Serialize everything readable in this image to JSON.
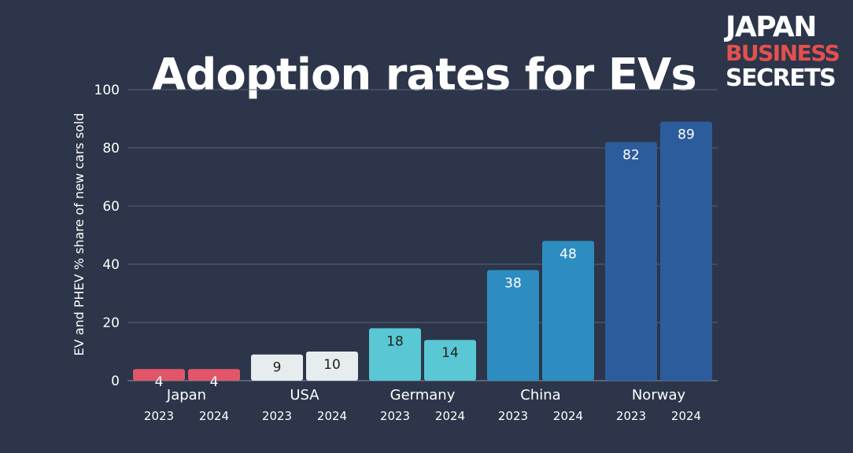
{
  "logo": {
    "line1": "JAPAN",
    "line2": "BUSINESS",
    "line3": "SECRETS"
  },
  "chart_data": {
    "type": "bar",
    "title": "Adoption rates for EVs",
    "ylabel": "EV and PHEV % share of new cars sold",
    "xlabel": "",
    "ylim": [
      0,
      100
    ],
    "yticks": [
      0,
      20,
      40,
      60,
      80,
      100
    ],
    "grid": true,
    "legend": "none",
    "groups": [
      {
        "category": "Japan",
        "color": "#e2566a",
        "label_color": "#ffffff",
        "bars": [
          {
            "year": "2023",
            "value": 4
          },
          {
            "year": "2024",
            "value": 4
          }
        ]
      },
      {
        "category": "USA",
        "color": "#e7edee",
        "label_color": "#222222",
        "bars": [
          {
            "year": "2023",
            "value": 9
          },
          {
            "year": "2024",
            "value": 10
          }
        ]
      },
      {
        "category": "Germany",
        "color": "#5ac7d4",
        "label_color": "#222222",
        "bars": [
          {
            "year": "2023",
            "value": 18
          },
          {
            "year": "2024",
            "value": 14
          }
        ]
      },
      {
        "category": "China",
        "color": "#2d8dc0",
        "label_color": "#ffffff",
        "bars": [
          {
            "year": "2023",
            "value": 38
          },
          {
            "year": "2024",
            "value": 48
          }
        ]
      },
      {
        "category": "Norway",
        "color": "#2d5c9c",
        "label_color": "#ffffff",
        "bars": [
          {
            "year": "2023",
            "value": 82
          },
          {
            "year": "2024",
            "value": 89
          }
        ]
      }
    ]
  }
}
